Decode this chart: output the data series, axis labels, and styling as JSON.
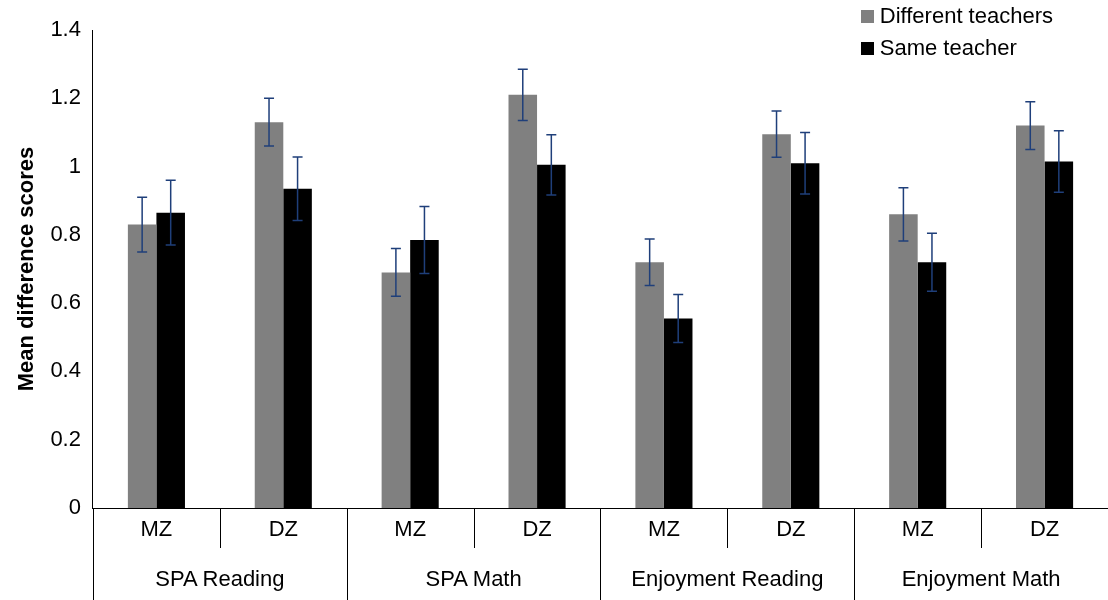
{
  "chart_data": {
    "type": "bar",
    "ylabel": "Mean difference scores",
    "categories": [
      "MZ",
      "DZ",
      "MZ",
      "DZ",
      "MZ",
      "DZ",
      "MZ",
      "DZ"
    ],
    "series": [
      {
        "name": "Different teachers",
        "color": "#808080",
        "values": [
          0.83,
          1.13,
          0.69,
          1.21,
          0.72,
          1.095,
          0.86,
          1.12
        ],
        "errors": [
          0.08,
          0.07,
          0.07,
          0.075,
          0.068,
          0.068,
          0.078,
          0.07
        ]
      },
      {
        "name": "Same teacher",
        "color": "#000000",
        "values": [
          0.865,
          0.935,
          0.785,
          1.005,
          0.555,
          1.01,
          0.72,
          1.015
        ],
        "errors": [
          0.095,
          0.093,
          0.098,
          0.088,
          0.07,
          0.09,
          0.085,
          0.09
        ]
      }
    ],
    "annotations": [
      "SPA Reading",
      "SPA Math",
      "Enjoyment Reading",
      "Enjoyment Math"
    ],
    "ylim": [
      0,
      1.4
    ],
    "yticks": [
      0,
      0.2,
      0.4,
      0.6,
      0.8,
      1,
      1.2,
      1.4
    ],
    "grid": false,
    "legend": "top right"
  }
}
